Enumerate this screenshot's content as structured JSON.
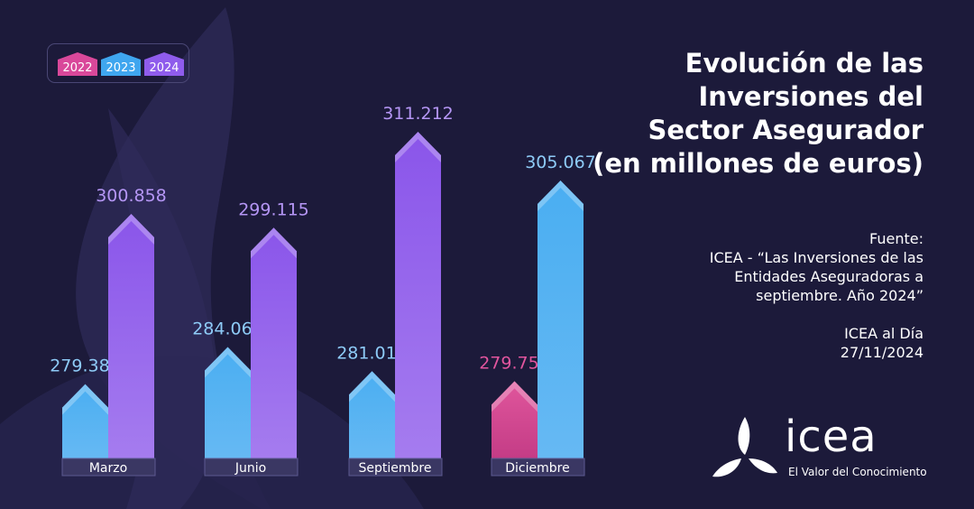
{
  "chart_data": {
    "type": "bar",
    "title": "Evolución de las Inversiones del Sector Asegurador (en millones de euros)",
    "categories": [
      "Marzo",
      "Junio",
      "Septiembre",
      "Diciembre"
    ],
    "series": [
      {
        "name": "2022",
        "color": "#e2559e",
        "values": [
          null,
          null,
          null,
          279.75
        ],
        "labels": [
          null,
          null,
          null,
          "279.750"
        ]
      },
      {
        "name": "2023",
        "color": "#3fa6ef",
        "values": [
          279.381,
          284.065,
          281.015,
          305.067
        ],
        "labels": [
          "279.381",
          "284.065",
          "281.015",
          "305.067"
        ]
      },
      {
        "name": "2024",
        "color": "#8f5cec",
        "values": [
          300.858,
          299.115,
          311.212,
          null
        ],
        "labels": [
          "300.858",
          "299.115",
          "311.212",
          null
        ]
      }
    ],
    "legend": [
      "2022",
      "2023",
      "2024"
    ],
    "ylim": [
      270,
      315
    ],
    "xlabel": "",
    "ylabel": ""
  },
  "title_lines": [
    "Evolución de las",
    "Inversiones del",
    "Sector Asegurador",
    "(en millones de euros)"
  ],
  "source": {
    "label": "Fuente:",
    "lines": [
      "ICEA - “Las Inversiones de las",
      "Entidades Aseguradoras a",
      "septiembre. Año 2024”"
    ],
    "publication": "ICEA al Día",
    "date": "27/11/2024"
  },
  "logo": {
    "name": "icea",
    "tagline": "El Valor del Conocimiento"
  },
  "colors": {
    "background": "#1c1a3a",
    "label_2022": "#e2559e",
    "label_2023": "#8ecbf7",
    "label_2024": "#b596f5"
  }
}
